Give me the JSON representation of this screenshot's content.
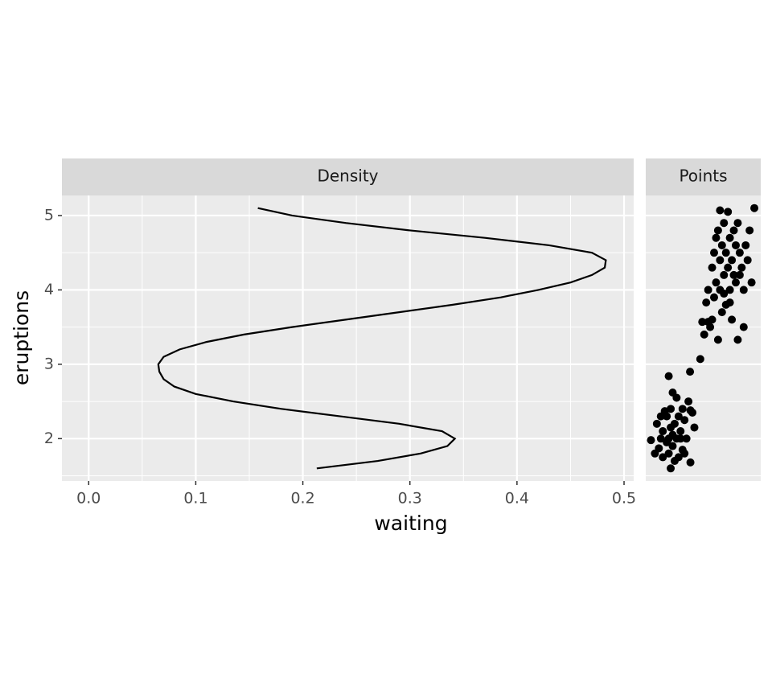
{
  "chart_data": [
    {
      "type": "line",
      "strip": "Density",
      "x_label": "waiting",
      "y_label": "eruptions",
      "color": "#000000",
      "xlim": [
        -0.025,
        0.509
      ],
      "xticks": [
        {
          "value": 0,
          "label": "0.0"
        },
        0.1,
        0.2,
        0.3,
        0.4,
        0.5
      ],
      "xminor": [
        0.05,
        0.15,
        0.25,
        0.35,
        0.45
      ],
      "ylim": [
        1.43,
        5.27
      ],
      "yticks": [
        2,
        3,
        4,
        5
      ],
      "yminor": [
        1.5,
        2.5,
        3.5,
        4.5
      ],
      "x": [
        0.213,
        0.27,
        0.31,
        0.335,
        0.342,
        0.33,
        0.29,
        0.235,
        0.18,
        0.135,
        0.1,
        0.08,
        0.07,
        0.066,
        0.065,
        0.07,
        0.085,
        0.11,
        0.145,
        0.19,
        0.24,
        0.29,
        0.34,
        0.385,
        0.42,
        0.45,
        0.47,
        0.482,
        0.483,
        0.47,
        0.43,
        0.37,
        0.3,
        0.24,
        0.19,
        0.158
      ],
      "y": [
        1.6,
        1.7,
        1.8,
        1.9,
        2.0,
        2.1,
        2.2,
        2.3,
        2.4,
        2.5,
        2.6,
        2.7,
        2.8,
        2.9,
        3.0,
        3.1,
        3.2,
        3.3,
        3.4,
        3.5,
        3.6,
        3.7,
        3.8,
        3.9,
        4.0,
        4.1,
        4.2,
        4.3,
        4.4,
        4.5,
        4.6,
        4.7,
        4.8,
        4.9,
        5.0,
        5.1
      ]
    },
    {
      "type": "scatter",
      "strip": "Points",
      "color": "#000000",
      "xlim": [
        40.35,
        98.65
      ],
      "ylim": [
        1.43,
        5.27
      ],
      "yticks": [
        2,
        3,
        4,
        5
      ],
      "yminor": [
        1.5,
        2.5,
        3.5,
        4.5
      ],
      "x": [
        43,
        45,
        46,
        47,
        48,
        49,
        49,
        50,
        51,
        51,
        52,
        52,
        53,
        53,
        54,
        54,
        55,
        55,
        56,
        57,
        57,
        58,
        59,
        59,
        60,
        62,
        63,
        63,
        64,
        65,
        54,
        52,
        53,
        58,
        60,
        61,
        56,
        48,
        62.8,
        68,
        69,
        70,
        71,
        72,
        73,
        74,
        74,
        75,
        75,
        76,
        76,
        77,
        77,
        78,
        78,
        79,
        79,
        80,
        80,
        81,
        81,
        82,
        82,
        83,
        83,
        84,
        84,
        85,
        85,
        86,
        86,
        87,
        87,
        88,
        88,
        89,
        90,
        90,
        91,
        92,
        93,
        94,
        95.4,
        72,
        83,
        80,
        78
      ],
      "y": [
        1.98,
        1.8,
        2.2,
        1.87,
        2.0,
        1.75,
        2.1,
        2.37,
        1.95,
        2.3,
        2.0,
        1.8,
        2.15,
        2.4,
        1.9,
        2.05,
        1.7,
        2.2,
        2.0,
        2.3,
        1.75,
        2.1,
        1.85,
        2.4,
        2.25,
        2.5,
        1.68,
        2.38,
        2.35,
        2.15,
        2.62,
        2.84,
        1.6,
        2.0,
        1.8,
        2.0,
        2.55,
        2.3,
        2.9,
        3.07,
        3.57,
        3.4,
        3.83,
        4.0,
        3.5,
        4.3,
        3.6,
        4.5,
        3.9,
        4.7,
        4.1,
        4.8,
        3.33,
        4.4,
        4.0,
        4.6,
        3.7,
        4.2,
        4.9,
        4.5,
        3.8,
        4.3,
        5.05,
        4.7,
        4.0,
        4.4,
        3.6,
        4.8,
        4.2,
        4.1,
        4.6,
        4.9,
        3.33,
        4.5,
        4.2,
        4.3,
        4.0,
        3.5,
        4.6,
        4.4,
        4.8,
        4.1,
        5.1,
        3.57,
        3.83,
        3.95,
        5.07
      ]
    }
  ]
}
